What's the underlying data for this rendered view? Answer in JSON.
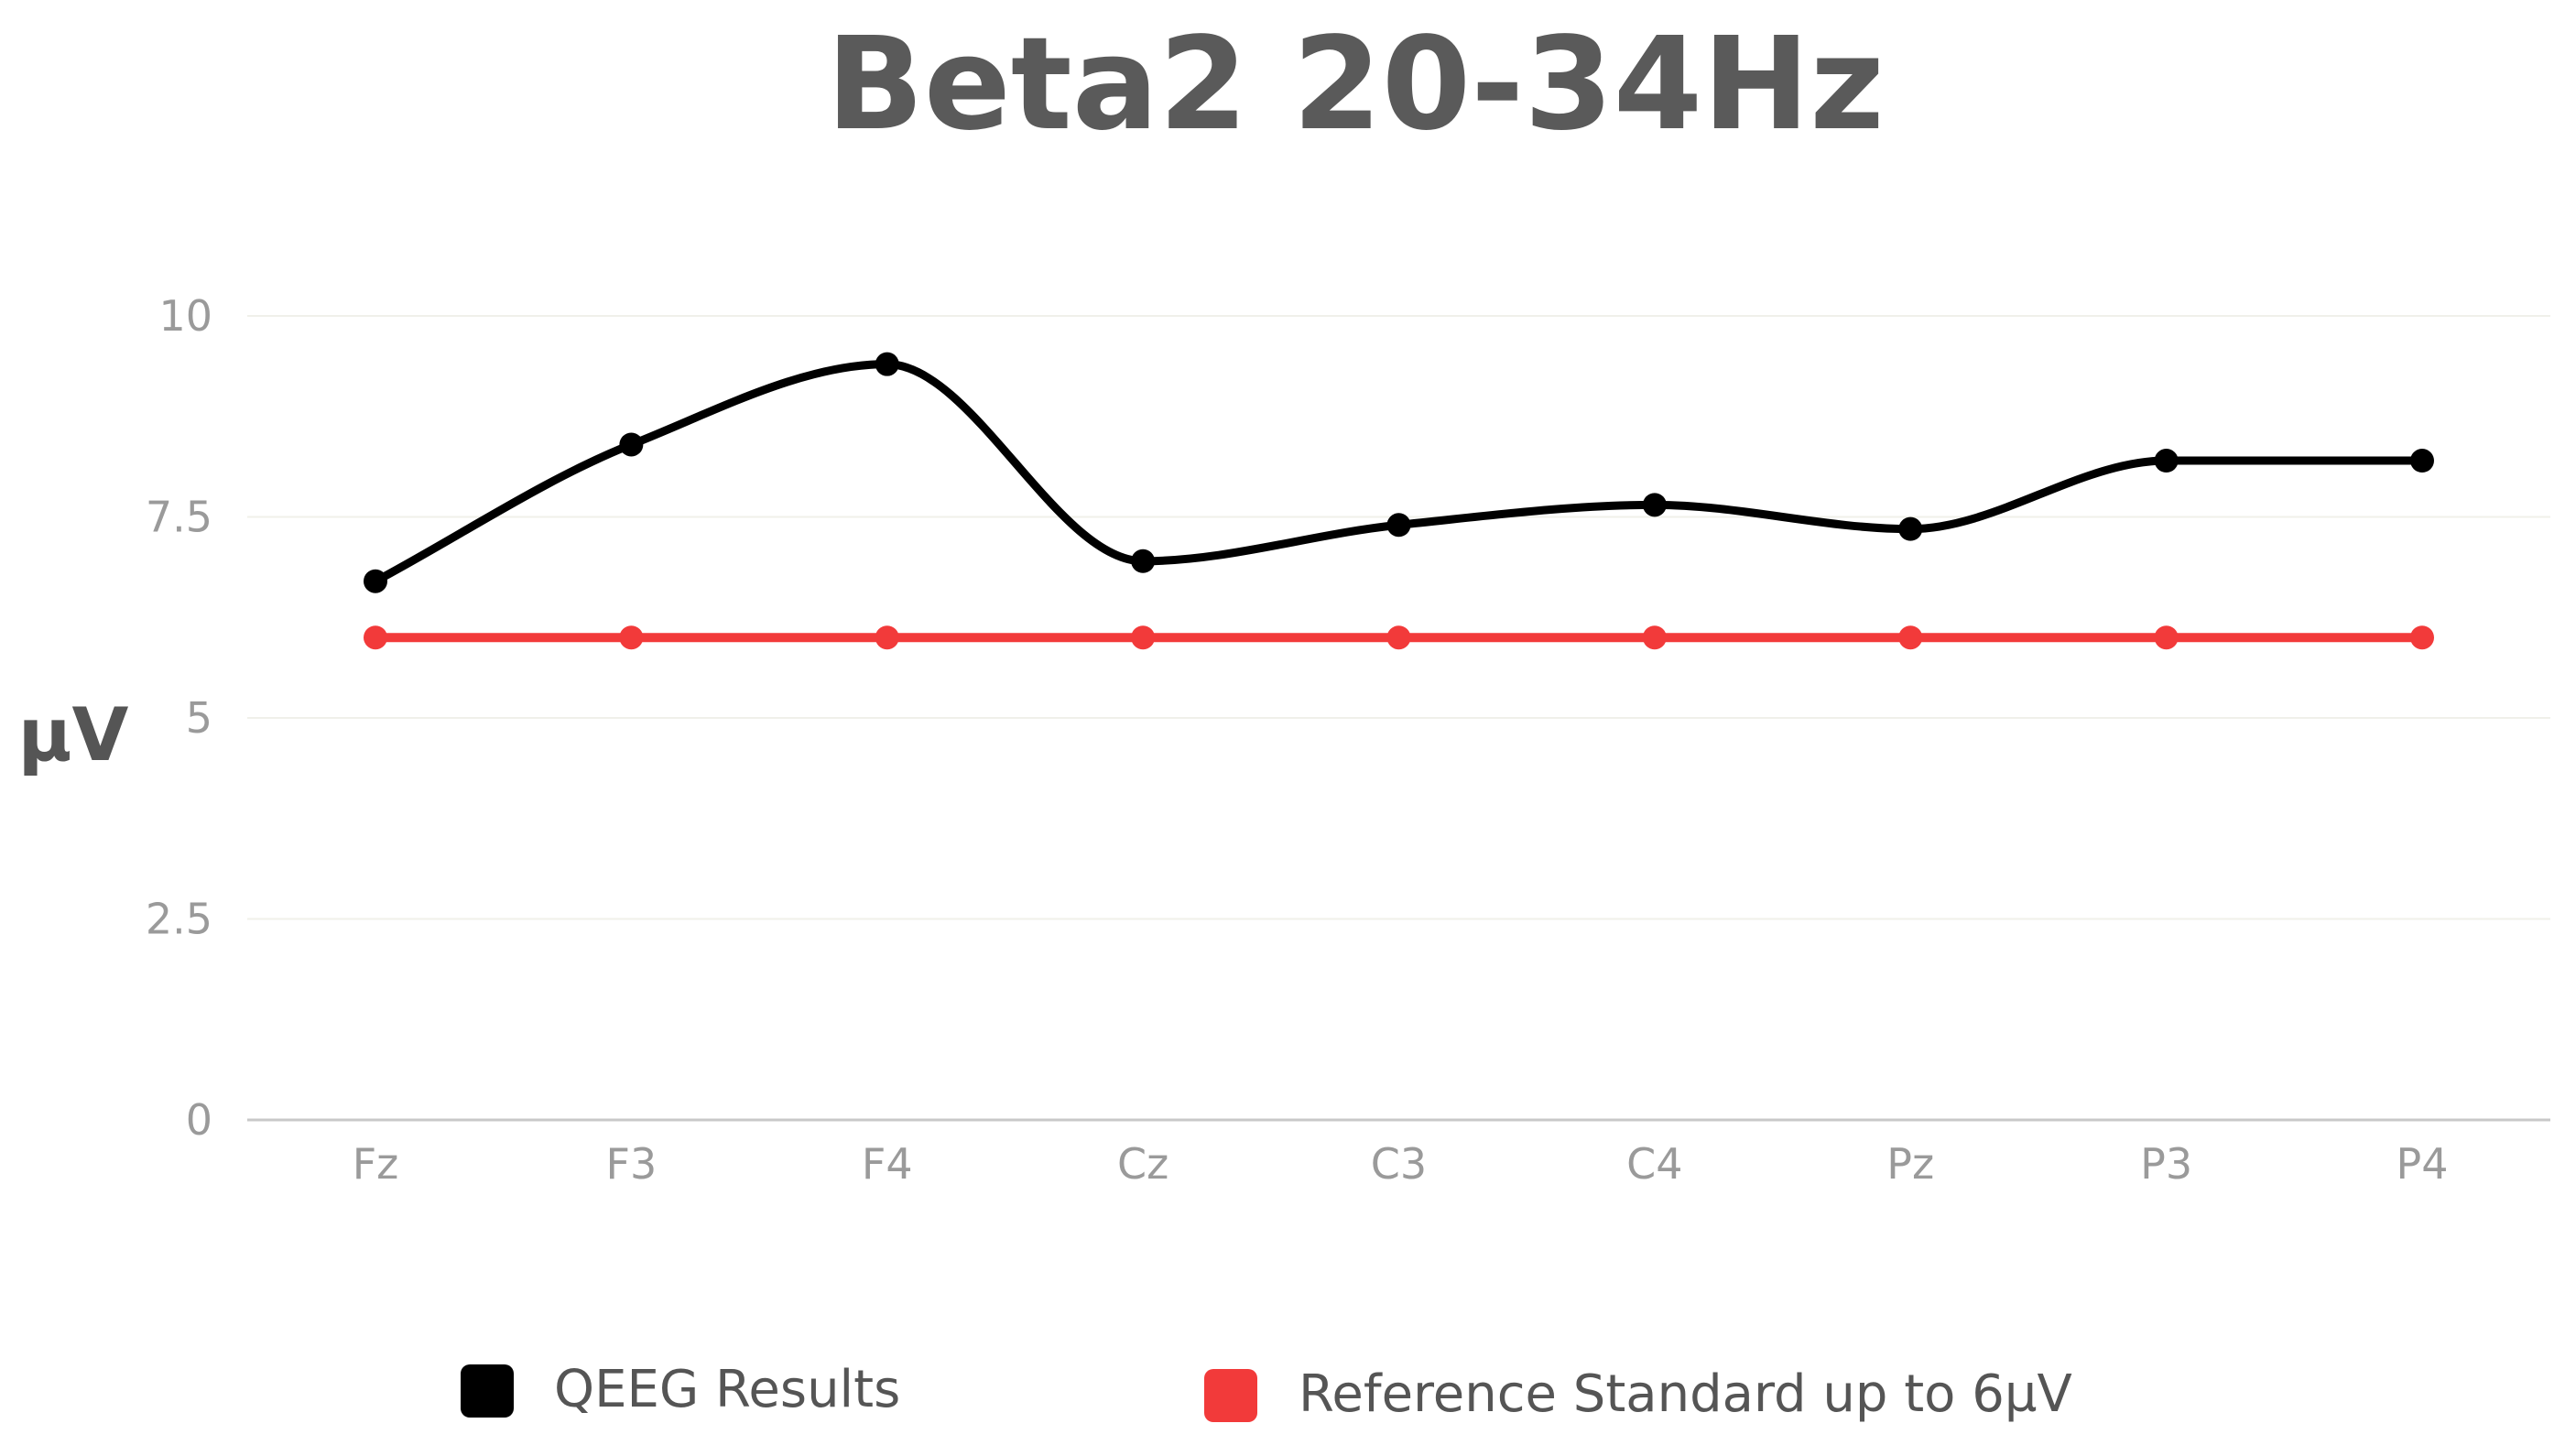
{
  "chart_data": {
    "type": "line",
    "title": "Beta2 20-34Hz",
    "ylabel": "µV",
    "xlabel": "",
    "categories": [
      "Fz",
      "F3",
      "F4",
      "Cz",
      "C3",
      "C4",
      "Pz",
      "P3",
      "P4"
    ],
    "ylim": [
      0,
      10
    ],
    "yticks": [
      "0",
      "2.5",
      "5",
      "7.5",
      "10"
    ],
    "grid": true,
    "legend_position": "bottom",
    "series": [
      {
        "name": "QEEG Results",
        "color": "#000000",
        "smooth": true,
        "values": [
          6.7,
          8.4,
          9.4,
          6.95,
          7.4,
          7.65,
          7.35,
          8.2,
          8.2
        ]
      },
      {
        "name": "Reference Standard up to 6µV",
        "color": "#f23a3a",
        "smooth": false,
        "values": [
          6,
          6,
          6,
          6,
          6,
          6,
          6,
          6,
          6
        ]
      }
    ]
  }
}
